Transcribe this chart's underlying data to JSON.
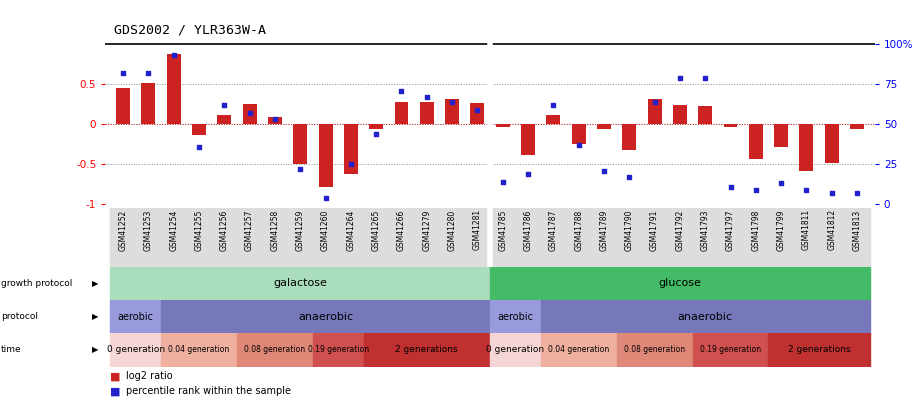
{
  "title": "GDS2002 / YLR363W-A",
  "samples": [
    "GSM41252",
    "GSM41253",
    "GSM41254",
    "GSM41255",
    "GSM41256",
    "GSM41257",
    "GSM41258",
    "GSM41259",
    "GSM41260",
    "GSM41264",
    "GSM41265",
    "GSM41266",
    "GSM41279",
    "GSM41280",
    "GSM41281",
    "GSM41785",
    "GSM41786",
    "GSM41787",
    "GSM41788",
    "GSM41789",
    "GSM41790",
    "GSM41791",
    "GSM41792",
    "GSM41793",
    "GSM41797",
    "GSM41798",
    "GSM41799",
    "GSM41811",
    "GSM41812",
    "GSM41813"
  ],
  "log2_ratio": [
    0.45,
    0.52,
    0.88,
    -0.13,
    0.11,
    0.25,
    0.09,
    -0.5,
    -0.78,
    -0.62,
    -0.06,
    0.28,
    0.28,
    0.32,
    0.27,
    -0.04,
    -0.38,
    0.12,
    -0.25,
    -0.06,
    -0.32,
    0.32,
    0.24,
    0.23,
    -0.03,
    -0.43,
    -0.28,
    -0.58,
    -0.48,
    -0.06
  ],
  "percentile": [
    82,
    82,
    93,
    36,
    62,
    57,
    53,
    22,
    4,
    25,
    44,
    71,
    67,
    64,
    59,
    14,
    19,
    62,
    37,
    21,
    17,
    64,
    79,
    79,
    11,
    9,
    13,
    9,
    7,
    7
  ],
  "ylim": [
    -1.05,
    1.05
  ],
  "yticks_left": [
    -1,
    -0.5,
    0,
    0.5
  ],
  "yticks_right": [
    0,
    25,
    50,
    75,
    100
  ],
  "bar_color": "#cc2222",
  "dot_color": "#2222cc",
  "galactose_color": "#aaddbb",
  "glucose_color": "#44bb66",
  "aerobic_color": "#9999dd",
  "anaerobic_color": "#7777bb",
  "time_colors": [
    "#f5d5d5",
    "#f0b0a0",
    "#e08878",
    "#d05050",
    "#c03030"
  ],
  "bg_color": "#ffffff"
}
